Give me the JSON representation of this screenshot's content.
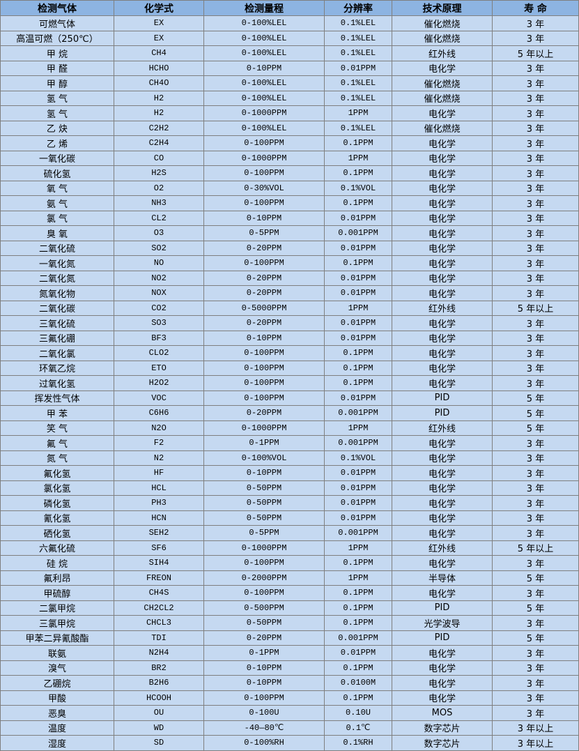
{
  "table": {
    "headers": [
      "检测气体",
      "化学式",
      "检测量程",
      "分辨率",
      "技术原理",
      "寿 命"
    ],
    "rows": [
      [
        "可燃气体",
        "EX",
        "0-100%LEL",
        "0.1%LEL",
        "催化燃烧",
        "3 年"
      ],
      [
        "高温可燃（250℃）",
        "EX",
        "0-100%LEL",
        "0.1%LEL",
        "催化燃烧",
        "3 年"
      ],
      [
        "甲 烷",
        "CH4",
        "0-100%LEL",
        "0.1%LEL",
        "红外线",
        "5 年以上"
      ],
      [
        "甲 醛",
        "HCHO",
        "0-10PPM",
        "0.01PPM",
        "电化学",
        "3 年"
      ],
      [
        "甲 醇",
        "CH4O",
        "0-100%LEL",
        "0.1%LEL",
        "催化燃烧",
        "3 年"
      ],
      [
        "氢 气",
        "H2",
        "0-100%LEL",
        "0.1%LEL",
        "催化燃烧",
        "3 年"
      ],
      [
        "氢 气",
        "H2",
        "0-1000PPM",
        "1PPM",
        "电化学",
        "3 年"
      ],
      [
        "乙 炔",
        "C2H2",
        "0-100%LEL",
        "0.1%LEL",
        "催化燃烧",
        "3 年"
      ],
      [
        "乙 烯",
        "C2H4",
        "0-100PPM",
        "0.1PPM",
        "电化学",
        "3 年"
      ],
      [
        "一氧化碳",
        "CO",
        "0-1000PPM",
        "1PPM",
        "电化学",
        "3 年"
      ],
      [
        "硫化氢",
        "H2S",
        "0-100PPM",
        "0.1PPM",
        "电化学",
        "3 年"
      ],
      [
        "氧 气",
        "O2",
        "0-30%VOL",
        "0.1%VOL",
        "电化学",
        "3 年"
      ],
      [
        "氨 气",
        "NH3",
        "0-100PPM",
        "0.1PPM",
        "电化学",
        "3 年"
      ],
      [
        "氯 气",
        "CL2",
        "0-10PPM",
        "0.01PPM",
        "电化学",
        "3 年"
      ],
      [
        "臭 氧",
        "O3",
        "0-5PPM",
        "0.001PPM",
        "电化学",
        "3 年"
      ],
      [
        "二氧化硫",
        "SO2",
        "0-20PPM",
        "0.01PPM",
        "电化学",
        "3 年"
      ],
      [
        "一氧化氮",
        "NO",
        "0-100PPM",
        "0.1PPM",
        "电化学",
        "3 年"
      ],
      [
        "二氧化氮",
        "NO2",
        "0-20PPM",
        "0.01PPM",
        "电化学",
        "3 年"
      ],
      [
        "氮氧化物",
        "NOX",
        "0-20PPM",
        "0.01PPM",
        "电化学",
        "3 年"
      ],
      [
        "二氧化碳",
        "CO2",
        "0-5000PPM",
        "1PPM",
        "红外线",
        "5 年以上"
      ],
      [
        "三氧化硫",
        "SO3",
        "0-20PPM",
        "0.01PPM",
        "电化学",
        "3 年"
      ],
      [
        "三氟化硼",
        "BF3",
        "0-10PPM",
        "0.01PPM",
        "电化学",
        "3 年"
      ],
      [
        "二氧化氯",
        "CLO2",
        "0-100PPM",
        "0.1PPM",
        "电化学",
        "3 年"
      ],
      [
        "环氧乙烷",
        "ETO",
        "0-100PPM",
        "0.1PPM",
        "电化学",
        "3 年"
      ],
      [
        "过氧化氢",
        "H2O2",
        "0-100PPM",
        "0.1PPM",
        "电化学",
        "3 年"
      ],
      [
        "挥发性气体",
        "VOC",
        "0-100PPM",
        "0.01PPM",
        "PID",
        "5 年"
      ],
      [
        "甲 苯",
        "C6H6",
        "0-20PPM",
        "0.001PPM",
        "PID",
        "5 年"
      ],
      [
        "笑 气",
        "N2O",
        "0-1000PPM",
        "1PPM",
        "红外线",
        "5 年"
      ],
      [
        "氟 气",
        "F2",
        "0-1PPM",
        "0.001PPM",
        "电化学",
        "3 年"
      ],
      [
        "氮 气",
        "N2",
        "0-100%VOL",
        "0.1%VOL",
        "电化学",
        "3 年"
      ],
      [
        "氟化氢",
        "HF",
        "0-10PPM",
        "0.01PPM",
        "电化学",
        "3 年"
      ],
      [
        "氯化氢",
        "HCL",
        "0-50PPM",
        "0.01PPM",
        "电化学",
        "3 年"
      ],
      [
        "磷化氢",
        "PH3",
        "0-50PPM",
        "0.01PPM",
        "电化学",
        "3 年"
      ],
      [
        "氰化氢",
        "HCN",
        "0-50PPM",
        "0.01PPM",
        "电化学",
        "3 年"
      ],
      [
        "硒化氢",
        "SEH2",
        "0-5PPM",
        "0.001PPM",
        "电化学",
        "3 年"
      ],
      [
        "六氟化硫",
        "SF6",
        "0-1000PPM",
        "1PPM",
        "红外线",
        "5 年以上"
      ],
      [
        "硅 烷",
        "SIH4",
        "0-100PPM",
        "0.1PPM",
        "电化学",
        "3 年"
      ],
      [
        "氟利昂",
        "FREON",
        "0-2000PPM",
        "1PPM",
        "半导体",
        "5 年"
      ],
      [
        "甲硫醇",
        "CH4S",
        "0-100PPM",
        "0.1PPM",
        "电化学",
        "3 年"
      ],
      [
        "二氯甲烷",
        "CH2CL2",
        "0-500PPM",
        "0.1PPM",
        "PID",
        "5 年"
      ],
      [
        "三氯甲烷",
        "CHCL3",
        "0-50PPM",
        "0.1PPM",
        "光学波导",
        "3 年"
      ],
      [
        "甲苯二异氰酸酯",
        "TDI",
        "0-20PPM",
        "0.001PPM",
        "PID",
        "5 年"
      ],
      [
        "联氨",
        "N2H4",
        "0-1PPM",
        "0.01PPM",
        "电化学",
        "3 年"
      ],
      [
        "溴气",
        "BR2",
        "0-10PPM",
        "0.1PPM",
        "电化学",
        "3 年"
      ],
      [
        "乙硼烷",
        "B2H6",
        "0-10PPM",
        "0.0100M",
        "电化学",
        "3 年"
      ],
      [
        "甲酸",
        "HCOOH",
        "0-100PPM",
        "0.1PPM",
        "电化学",
        "3 年"
      ],
      [
        "恶臭",
        "OU",
        "0-100U",
        "0.10U",
        "MOS",
        "3 年"
      ],
      [
        "温度",
        "WD",
        "-40—80℃",
        "0.1℃",
        "数字芯片",
        "3 年以上"
      ],
      [
        "湿度",
        "SD",
        "0-100%RH",
        "0.1%RH",
        "数字芯片",
        "3 年以上"
      ]
    ]
  },
  "colors": {
    "header_bg": "#8db4e2",
    "row_bg": "#c5d9f1",
    "border": "#7f7f7f"
  }
}
